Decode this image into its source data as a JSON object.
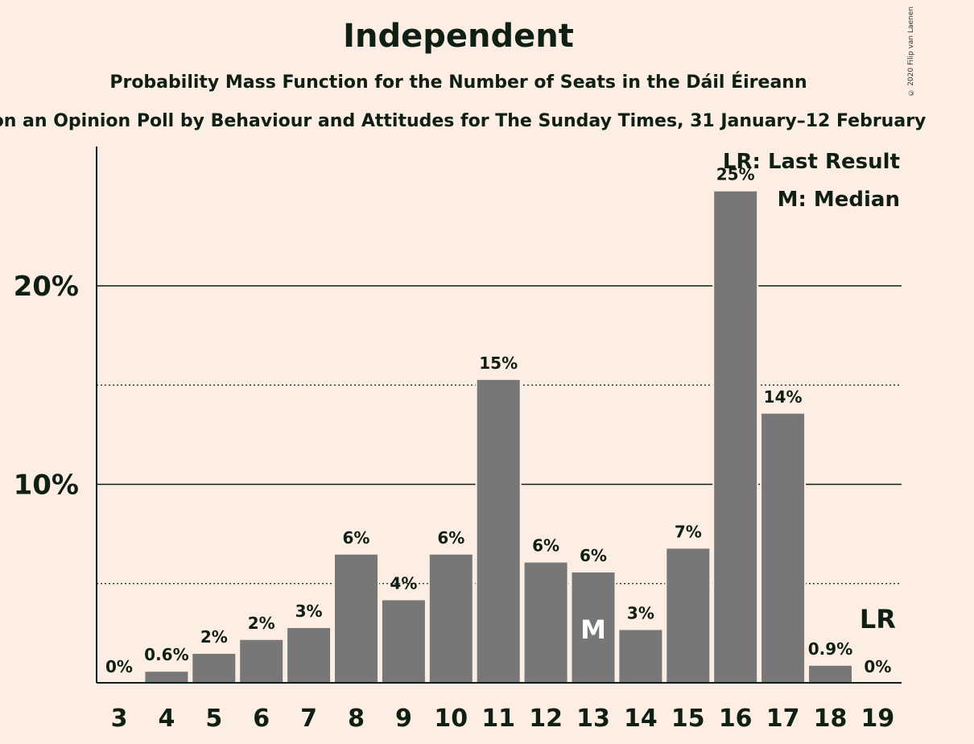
{
  "header": {
    "title": "Independent",
    "subtitle": "Probability Mass Function for the Number of Seats in the Dáil Éireann",
    "source": "on an Opinion Poll by Behaviour and Attitudes for The Sunday Times, 31 January–12 February",
    "copyright": "© 2020 Filip van Laenen"
  },
  "colors": {
    "background": "#FDEEE4",
    "bar": "#777777",
    "text": "#0F1F14"
  },
  "chart_data": {
    "type": "bar",
    "title": "Independent",
    "xlabel": "",
    "ylabel": "",
    "categories": [
      "3",
      "4",
      "5",
      "6",
      "7",
      "8",
      "9",
      "10",
      "11",
      "12",
      "13",
      "14",
      "15",
      "16",
      "17",
      "18",
      "19"
    ],
    "values": [
      0,
      0.6,
      1.5,
      2.2,
      2.8,
      6.5,
      4.2,
      6.5,
      15.3,
      6.1,
      5.6,
      2.7,
      6.8,
      24.8,
      13.6,
      0.9,
      0
    ],
    "data_labels": [
      "0%",
      "0.6%",
      "2%",
      "2%",
      "3%",
      "6%",
      "4%",
      "6%",
      "15%",
      "6%",
      "6%",
      "3%",
      "7%",
      "25%",
      "14%",
      "0.9%",
      "0%"
    ],
    "ylim": [
      0,
      27
    ],
    "yticks": [
      {
        "value": 10,
        "label": "10%"
      },
      {
        "value": 20,
        "label": "20%"
      }
    ],
    "minor_gridlines": [
      5,
      15
    ],
    "median_seat": "13",
    "median_marker": "M",
    "last_result_seat": "19",
    "last_result_marker": "LR",
    "legend": [
      "LR: Last Result",
      "M: Median"
    ],
    "legend_position": "top-right"
  }
}
